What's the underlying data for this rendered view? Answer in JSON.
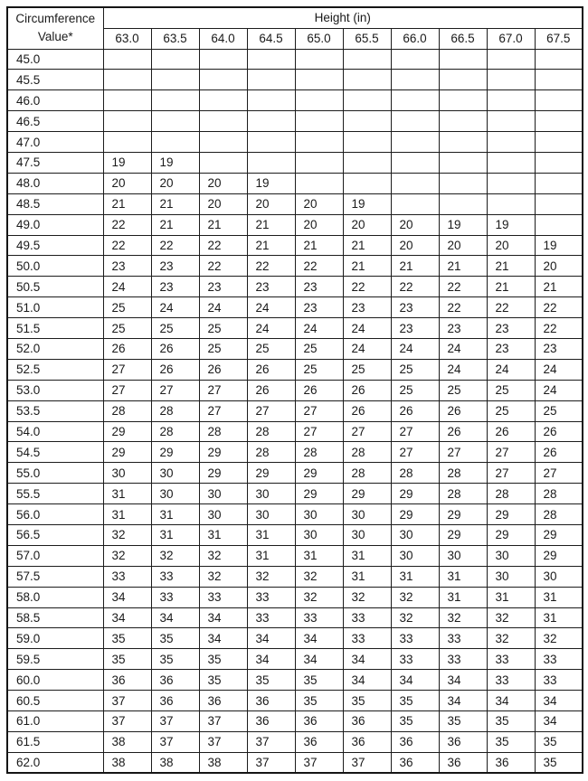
{
  "table": {
    "corner_label_line1": "Circumference",
    "corner_label_line2": "Value*",
    "height_group_label": "Height (in)",
    "height_columns": [
      "63.0",
      "63.5",
      "64.0",
      "64.5",
      "65.0",
      "65.5",
      "66.0",
      "66.5",
      "67.0",
      "67.5"
    ],
    "rows": [
      {
        "label": "45.0",
        "values": [
          "",
          "",
          "",
          "",
          "",
          "",
          "",
          "",
          "",
          ""
        ]
      },
      {
        "label": "45.5",
        "values": [
          "",
          "",
          "",
          "",
          "",
          "",
          "",
          "",
          "",
          ""
        ]
      },
      {
        "label": "46.0",
        "values": [
          "",
          "",
          "",
          "",
          "",
          "",
          "",
          "",
          "",
          ""
        ]
      },
      {
        "label": "46.5",
        "values": [
          "",
          "",
          "",
          "",
          "",
          "",
          "",
          "",
          "",
          ""
        ]
      },
      {
        "label": "47.0",
        "values": [
          "",
          "",
          "",
          "",
          "",
          "",
          "",
          "",
          "",
          ""
        ]
      },
      {
        "label": "47.5",
        "values": [
          "19",
          "19",
          "",
          "",
          "",
          "",
          "",
          "",
          "",
          ""
        ]
      },
      {
        "label": "48.0",
        "values": [
          "20",
          "20",
          "20",
          "19",
          "",
          "",
          "",
          "",
          "",
          ""
        ]
      },
      {
        "label": "48.5",
        "values": [
          "21",
          "21",
          "20",
          "20",
          "20",
          "19",
          "",
          "",
          "",
          ""
        ]
      },
      {
        "label": "49.0",
        "values": [
          "22",
          "21",
          "21",
          "21",
          "20",
          "20",
          "20",
          "19",
          "19",
          ""
        ]
      },
      {
        "label": "49.5",
        "values": [
          "22",
          "22",
          "22",
          "21",
          "21",
          "21",
          "20",
          "20",
          "20",
          "19"
        ]
      },
      {
        "label": "50.0",
        "values": [
          "23",
          "23",
          "22",
          "22",
          "22",
          "21",
          "21",
          "21",
          "21",
          "20"
        ]
      },
      {
        "label": "50.5",
        "values": [
          "24",
          "23",
          "23",
          "23",
          "23",
          "22",
          "22",
          "22",
          "21",
          "21"
        ]
      },
      {
        "label": "51.0",
        "values": [
          "25",
          "24",
          "24",
          "24",
          "23",
          "23",
          "23",
          "22",
          "22",
          "22"
        ]
      },
      {
        "label": "51.5",
        "values": [
          "25",
          "25",
          "25",
          "24",
          "24",
          "24",
          "23",
          "23",
          "23",
          "22"
        ]
      },
      {
        "label": "52.0",
        "values": [
          "26",
          "26",
          "25",
          "25",
          "25",
          "24",
          "24",
          "24",
          "23",
          "23"
        ]
      },
      {
        "label": "52.5",
        "values": [
          "27",
          "26",
          "26",
          "26",
          "25",
          "25",
          "25",
          "24",
          "24",
          "24"
        ]
      },
      {
        "label": "53.0",
        "values": [
          "27",
          "27",
          "27",
          "26",
          "26",
          "26",
          "25",
          "25",
          "25",
          "24"
        ]
      },
      {
        "label": "53.5",
        "values": [
          "28",
          "28",
          "27",
          "27",
          "27",
          "26",
          "26",
          "26",
          "25",
          "25"
        ]
      },
      {
        "label": "54.0",
        "values": [
          "29",
          "28",
          "28",
          "28",
          "27",
          "27",
          "27",
          "26",
          "26",
          "26"
        ]
      },
      {
        "label": "54.5",
        "values": [
          "29",
          "29",
          "29",
          "28",
          "28",
          "28",
          "27",
          "27",
          "27",
          "26"
        ]
      },
      {
        "label": "55.0",
        "values": [
          "30",
          "30",
          "29",
          "29",
          "29",
          "28",
          "28",
          "28",
          "27",
          "27"
        ]
      },
      {
        "label": "55.5",
        "values": [
          "31",
          "30",
          "30",
          "30",
          "29",
          "29",
          "29",
          "28",
          "28",
          "28"
        ]
      },
      {
        "label": "56.0",
        "values": [
          "31",
          "31",
          "30",
          "30",
          "30",
          "30",
          "29",
          "29",
          "29",
          "28"
        ]
      },
      {
        "label": "56.5",
        "values": [
          "32",
          "31",
          "31",
          "31",
          "30",
          "30",
          "30",
          "29",
          "29",
          "29"
        ]
      },
      {
        "label": "57.0",
        "values": [
          "32",
          "32",
          "32",
          "31",
          "31",
          "31",
          "30",
          "30",
          "30",
          "29"
        ]
      },
      {
        "label": "57.5",
        "values": [
          "33",
          "33",
          "32",
          "32",
          "32",
          "31",
          "31",
          "31",
          "30",
          "30"
        ]
      },
      {
        "label": "58.0",
        "values": [
          "34",
          "33",
          "33",
          "33",
          "32",
          "32",
          "32",
          "31",
          "31",
          "31"
        ]
      },
      {
        "label": "58.5",
        "values": [
          "34",
          "34",
          "34",
          "33",
          "33",
          "33",
          "32",
          "32",
          "32",
          "31"
        ]
      },
      {
        "label": "59.0",
        "values": [
          "35",
          "35",
          "34",
          "34",
          "34",
          "33",
          "33",
          "33",
          "32",
          "32"
        ]
      },
      {
        "label": "59.5",
        "values": [
          "35",
          "35",
          "35",
          "34",
          "34",
          "34",
          "33",
          "33",
          "33",
          "33"
        ]
      },
      {
        "label": "60.0",
        "values": [
          "36",
          "36",
          "35",
          "35",
          "35",
          "34",
          "34",
          "34",
          "33",
          "33"
        ]
      },
      {
        "label": "60.5",
        "values": [
          "37",
          "36",
          "36",
          "36",
          "35",
          "35",
          "35",
          "34",
          "34",
          "34"
        ]
      },
      {
        "label": "61.0",
        "values": [
          "37",
          "37",
          "37",
          "36",
          "36",
          "36",
          "35",
          "35",
          "35",
          "34"
        ]
      },
      {
        "label": "61.5",
        "values": [
          "38",
          "37",
          "37",
          "37",
          "36",
          "36",
          "36",
          "36",
          "35",
          "35"
        ]
      },
      {
        "label": "62.0",
        "values": [
          "38",
          "38",
          "38",
          "37",
          "37",
          "37",
          "36",
          "36",
          "36",
          "35"
        ]
      }
    ]
  }
}
